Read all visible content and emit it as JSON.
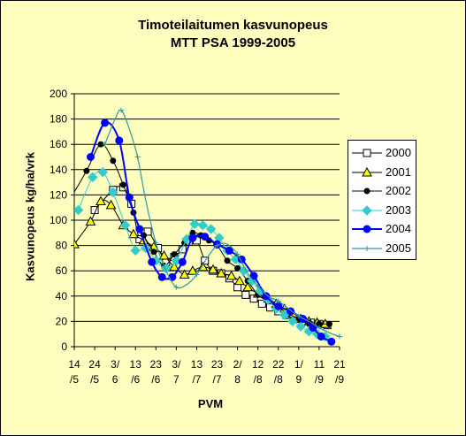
{
  "chart_data": {
    "type": "line",
    "title": "Timoteilaitumen kasvunopeus",
    "subtitle": "MTT PSA 1999-2005",
    "xlabel": "PVM",
    "ylabel": "Kasvunopeus kg/ha/vrk",
    "ylim": [
      0,
      200
    ],
    "yticks": [
      0,
      20,
      40,
      60,
      80,
      100,
      120,
      140,
      160,
      180,
      200
    ],
    "xlim": [
      0,
      130
    ],
    "x_ticks": [
      {
        "x": 0,
        "top": "14",
        "bottom": "/5"
      },
      {
        "x": 10,
        "top": "24",
        "bottom": "/5"
      },
      {
        "x": 20,
        "top": "3/",
        "bottom": "6"
      },
      {
        "x": 30,
        "top": "13",
        "bottom": "/6"
      },
      {
        "x": 40,
        "top": "23",
        "bottom": "/6"
      },
      {
        "x": 50,
        "top": "3/",
        "bottom": "7"
      },
      {
        "x": 60,
        "top": "13",
        "bottom": "/7"
      },
      {
        "x": 70,
        "top": "23",
        "bottom": "/7"
      },
      {
        "x": 80,
        "top": "2/",
        "bottom": "8"
      },
      {
        "x": 90,
        "top": "12",
        "bottom": "/8"
      },
      {
        "x": 100,
        "top": "22",
        "bottom": "/8"
      },
      {
        "x": 110,
        "top": "1/",
        "bottom": "9"
      },
      {
        "x": 120,
        "top": "11",
        "bottom": "/9"
      },
      {
        "x": 130,
        "top": "21",
        "bottom": "/9"
      }
    ],
    "grid": "horizontal",
    "legend_position": "right",
    "series": [
      {
        "name": "2000",
        "color": "#000000",
        "marker": "square-open",
        "x": [
          10,
          19,
          24,
          28,
          32,
          36,
          41,
          45,
          49,
          53,
          56,
          60,
          64,
          68,
          72,
          76,
          80,
          84,
          88,
          92,
          96,
          100,
          104,
          108,
          112,
          116,
          120,
          124
        ],
        "y": [
          108,
          124,
          126,
          113,
          85,
          91,
          78,
          67,
          71,
          77,
          83,
          84,
          68,
          60,
          58,
          54,
          47,
          41,
          38,
          34,
          31,
          28,
          25,
          22,
          20,
          19,
          18,
          17
        ]
      },
      {
        "name": "2001",
        "color": "#000000",
        "marker": "triangle-yellow",
        "x": [
          0,
          8,
          13,
          18,
          24,
          29,
          34,
          39,
          44,
          49,
          54,
          58,
          63,
          68,
          72,
          77,
          81,
          85,
          90,
          95,
          99,
          103,
          107,
          111,
          115,
          119,
          123
        ],
        "y": [
          81,
          99,
          115,
          112,
          96,
          89,
          84,
          79,
          72,
          63,
          57,
          60,
          63,
          61,
          58,
          56,
          52,
          47,
          42,
          38,
          34,
          30,
          26,
          22,
          20,
          19,
          18
        ]
      },
      {
        "name": "2002",
        "color": "#000000",
        "marker": "circle-black",
        "x": [
          -3,
          6,
          13,
          19,
          24,
          29,
          34,
          39,
          44,
          49,
          54,
          58,
          62,
          66,
          70,
          75,
          80,
          85,
          90,
          95,
          100,
          105,
          110,
          115,
          120,
          125
        ],
        "y": [
          114,
          139,
          160,
          147,
          128,
          106,
          88,
          75,
          64,
          73,
          82,
          90,
          88,
          84,
          80,
          68,
          62,
          52,
          41,
          36,
          31,
          26,
          22,
          19,
          18,
          18
        ]
      },
      {
        "name": "2003",
        "color": "#33cccc",
        "marker": "diamond-cyan",
        "x": [
          2,
          9,
          14,
          19,
          25,
          30,
          35,
          40,
          45,
          50,
          55,
          59,
          63,
          67,
          71,
          75,
          79,
          83,
          87,
          91,
          95,
          99,
          103,
          107,
          111,
          115,
          119,
          123
        ],
        "y": [
          108,
          134,
          138,
          122,
          96,
          76,
          78,
          68,
          62,
          68,
          85,
          97,
          96,
          93,
          86,
          76,
          69,
          60,
          52,
          44,
          37,
          30,
          25,
          20,
          16,
          12,
          10,
          8
        ]
      },
      {
        "name": "2004",
        "color": "#0000ff",
        "marker": "circle-blue",
        "x": [
          8,
          15,
          22,
          27,
          32,
          38,
          43,
          48,
          53,
          58,
          64,
          70,
          76,
          82,
          88,
          94,
          100,
          106,
          112,
          117,
          121,
          126
        ],
        "y": [
          150,
          177,
          163,
          118,
          93,
          67,
          55,
          55,
          67,
          86,
          87,
          81,
          76,
          69,
          56,
          40,
          32,
          28,
          22,
          15,
          8,
          4
        ]
      },
      {
        "name": "2005",
        "color": "#339999",
        "marker": "plus",
        "x": [
          15,
          20,
          23,
          27,
          31,
          35,
          40,
          45,
          50,
          55,
          60,
          65,
          70,
          75,
          80,
          85,
          90,
          95,
          100,
          105,
          110,
          115,
          120,
          125,
          130
        ],
        "y": [
          160,
          180,
          187,
          172,
          150,
          116,
          82,
          60,
          47,
          49,
          57,
          70,
          80,
          81,
          73,
          58,
          48,
          40,
          36,
          30,
          24,
          20,
          15,
          11,
          8
        ]
      }
    ]
  }
}
